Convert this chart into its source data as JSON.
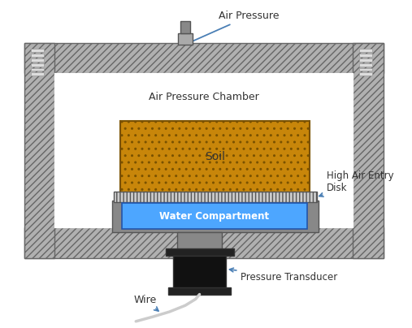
{
  "bg_color": "#ffffff",
  "chamber_color": "#b0b0b0",
  "soil_color": "#c8860a",
  "water_color": "#4da6ff",
  "transducer_color": "#111111",
  "wire_color": "#cccccc",
  "annotation_color": "#4a7fb5",
  "labels": {
    "air_pressure": "Air Pressure",
    "air_pressure_chamber": "Air Pressure Chamber",
    "high_air_entry": "High Air Entry\nDisk",
    "pressure_transducer": "Pressure Transducer",
    "wire": "Wire",
    "soil": "Soil",
    "water_compartment": "Water Compartment"
  },
  "figsize": [
    5.07,
    4.04
  ],
  "dpi": 100
}
